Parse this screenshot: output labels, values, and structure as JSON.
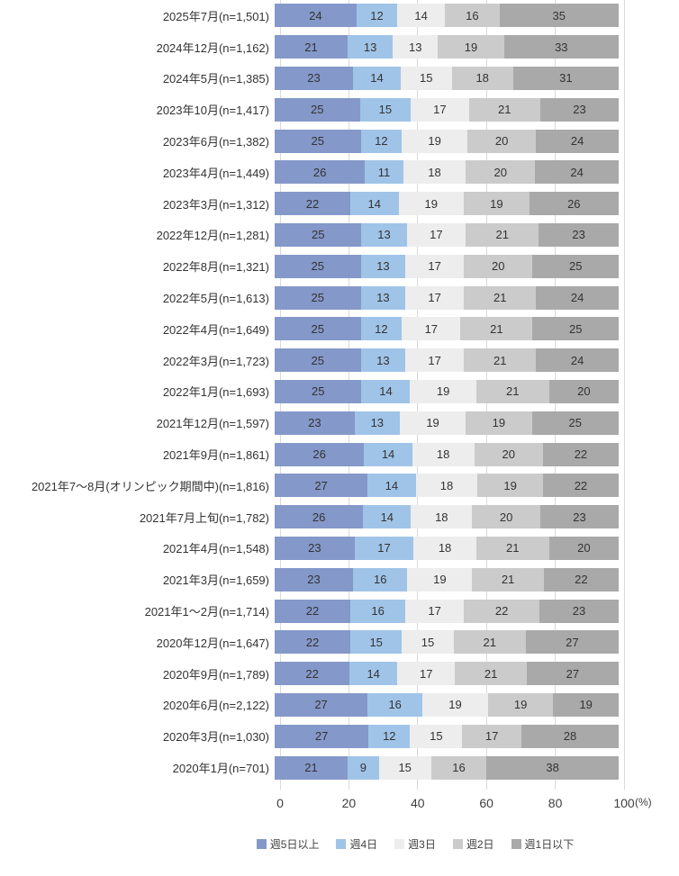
{
  "chart_data": {
    "type": "bar",
    "orientation": "horizontal",
    "stacked": true,
    "normalized_to_100": true,
    "title": "",
    "xlabel": "",
    "ylabel": "",
    "xlim": [
      0,
      100
    ],
    "x_ticks": [
      0,
      20,
      40,
      60,
      80,
      100
    ],
    "x_axis_unit_label": "(%)",
    "grid": true,
    "legend_position": "bottom",
    "series": [
      {
        "name": "週5日以上",
        "color": "#8498c9"
      },
      {
        "name": "週4日",
        "color": "#a0c4e8"
      },
      {
        "name": "週3日",
        "color": "#ededed"
      },
      {
        "name": "週2日",
        "color": "#cbcbcb"
      },
      {
        "name": "週1日以下",
        "color": "#a9a9a9"
      }
    ],
    "rows": [
      {
        "label": "2025年7月(n=1,501)",
        "values": [
          24,
          12,
          14,
          16,
          35
        ]
      },
      {
        "label": "2024年12月(n=1,162)",
        "values": [
          21,
          13,
          13,
          19,
          33
        ]
      },
      {
        "label": "2024年5月(n=1,385)",
        "values": [
          23,
          14,
          15,
          18,
          31
        ]
      },
      {
        "label": "2023年10月(n=1,417)",
        "values": [
          25,
          15,
          17,
          21,
          23
        ]
      },
      {
        "label": "2023年6月(n=1,382)",
        "values": [
          25,
          12,
          19,
          20,
          24
        ]
      },
      {
        "label": "2023年4月(n=1,449)",
        "values": [
          26,
          11,
          18,
          20,
          24
        ]
      },
      {
        "label": "2023年3月(n=1,312)",
        "values": [
          22,
          14,
          19,
          19,
          26
        ]
      },
      {
        "label": "2022年12月(n=1,281)",
        "values": [
          25,
          13,
          17,
          21,
          23
        ]
      },
      {
        "label": "2022年8月(n=1,321)",
        "values": [
          25,
          13,
          17,
          20,
          25
        ]
      },
      {
        "label": "2022年5月(n=1,613)",
        "values": [
          25,
          13,
          17,
          21,
          24
        ]
      },
      {
        "label": "2022年4月(n=1,649)",
        "values": [
          25,
          12,
          17,
          21,
          25
        ]
      },
      {
        "label": "2022年3月(n=1,723)",
        "values": [
          25,
          13,
          17,
          21,
          24
        ]
      },
      {
        "label": "2022年1月(n=1,693)",
        "values": [
          25,
          14,
          19,
          21,
          20
        ]
      },
      {
        "label": "2021年12月(n=1,597)",
        "values": [
          23,
          13,
          19,
          19,
          25
        ]
      },
      {
        "label": "2021年9月(n=1,861)",
        "values": [
          26,
          14,
          18,
          20,
          22
        ]
      },
      {
        "label": "2021年7〜8月(オリンピック期間中)(n=1,816)",
        "values": [
          27,
          14,
          18,
          19,
          22
        ]
      },
      {
        "label": "2021年7月上旬(n=1,782)",
        "values": [
          26,
          14,
          18,
          20,
          23
        ]
      },
      {
        "label": "2021年4月(n=1,548)",
        "values": [
          23,
          17,
          18,
          21,
          20
        ]
      },
      {
        "label": "2021年3月(n=1,659)",
        "values": [
          23,
          16,
          19,
          21,
          22
        ]
      },
      {
        "label": "2021年1〜2月(n=1,714)",
        "values": [
          22,
          16,
          17,
          22,
          23
        ]
      },
      {
        "label": "2020年12月(n=1,647)",
        "values": [
          22,
          15,
          15,
          21,
          27
        ]
      },
      {
        "label": "2020年9月(n=1,789)",
        "values": [
          22,
          14,
          17,
          21,
          27
        ]
      },
      {
        "label": "2020年6月(n=2,122)",
        "values": [
          27,
          16,
          19,
          19,
          19
        ]
      },
      {
        "label": "2020年3月(n=1,030)",
        "values": [
          27,
          12,
          15,
          17,
          28
        ]
      },
      {
        "label": "2020年1月(n=701)",
        "values": [
          21,
          9,
          15,
          16,
          38
        ]
      }
    ],
    "colors": {
      "gridline": "#d9d9d9",
      "value_text": "#333333",
      "axis_text": "#404040"
    }
  }
}
